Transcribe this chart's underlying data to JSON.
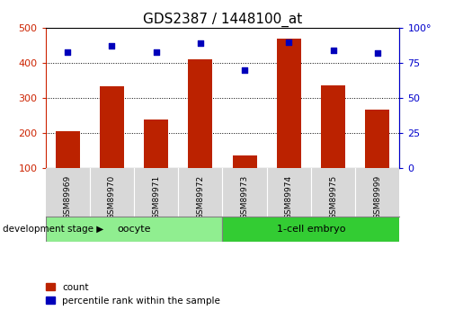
{
  "title": "GDS2387 / 1448100_at",
  "samples": [
    "GSM89969",
    "GSM89970",
    "GSM89971",
    "GSM89972",
    "GSM89973",
    "GSM89974",
    "GSM89975",
    "GSM89999"
  ],
  "counts": [
    204,
    332,
    238,
    410,
    134,
    470,
    335,
    265
  ],
  "percentiles": [
    83,
    87,
    83,
    89,
    70,
    90,
    84,
    82
  ],
  "ylim_left": [
    100,
    500
  ],
  "ylim_right": [
    0,
    100
  ],
  "yticks_left": [
    100,
    200,
    300,
    400,
    500
  ],
  "yticks_right": [
    0,
    25,
    50,
    75,
    100
  ],
  "groups": [
    {
      "label": "oocyte",
      "start": 0,
      "end": 4,
      "color": "#90EE90"
    },
    {
      "label": "1-cell embryo",
      "start": 4,
      "end": 8,
      "color": "#33CC33"
    }
  ],
  "bar_color": "#BB2200",
  "dot_color": "#0000BB",
  "title_fontsize": 11,
  "tick_label_color_left": "#CC2200",
  "tick_label_color_right": "#0000CC",
  "background_color": "#ffffff",
  "axis_bg": "#ffffff",
  "sample_bg": "#D8D8D8",
  "dev_stage_label": "development stage ▶",
  "legend_count": "count",
  "legend_pct": "percentile rank within the sample"
}
